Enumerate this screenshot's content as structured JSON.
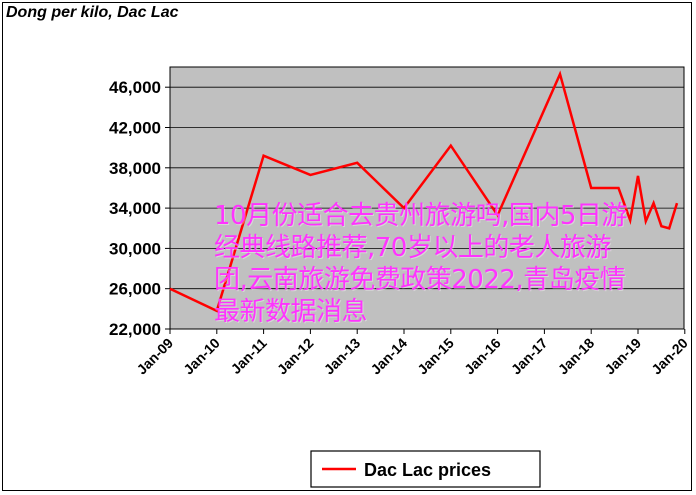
{
  "chart_data": {
    "type": "line",
    "title": "Dong per kilo, Dac Lac",
    "xlabel": "",
    "ylabel": "",
    "x_ticks": [
      "Jan-09",
      "Jan-10",
      "Jan-11",
      "Jan-12",
      "Jan-13",
      "Jan-14",
      "Jan-15",
      "Jan-16",
      "Jan-17",
      "Jan-18",
      "Jan-19",
      "Jan-20"
    ],
    "y_ticks": [
      "22,000",
      "26,000",
      "30,000",
      "34,000",
      "38,000",
      "42,000",
      "46,000"
    ],
    "ylim": [
      22000,
      48000
    ],
    "grid": true,
    "legend_position": "bottom-center",
    "series": [
      {
        "name": "Dac Lac prices",
        "color": "#ff0000",
        "x": [
          "2009-01",
          "2010-01",
          "2011-01",
          "2012-01",
          "2013-01",
          "2014-01",
          "2015-01",
          "2016-01",
          "2017-05",
          "2018-01",
          "2018-08",
          "2018-11",
          "2019-01",
          "2019-03",
          "2019-05",
          "2019-07",
          "2019-09",
          "2019-11"
        ],
        "values": [
          26000,
          23800,
          39200,
          37300,
          38500,
          34000,
          40200,
          33300,
          47300,
          36000,
          36000,
          32800,
          37200,
          32700,
          34500,
          32200,
          32000,
          34500
        ]
      }
    ]
  },
  "overlay_text": "10月份适合去贵州旅游吗,国内5日游经典线路推荐,70岁以上的老人旅游团,云南旅游免费政策2022,青岛疫情最新数据消息",
  "colors": {
    "plot_bg": "#c0c0c0",
    "line": "#ff0000",
    "overlay_text": "#ff33ff"
  }
}
